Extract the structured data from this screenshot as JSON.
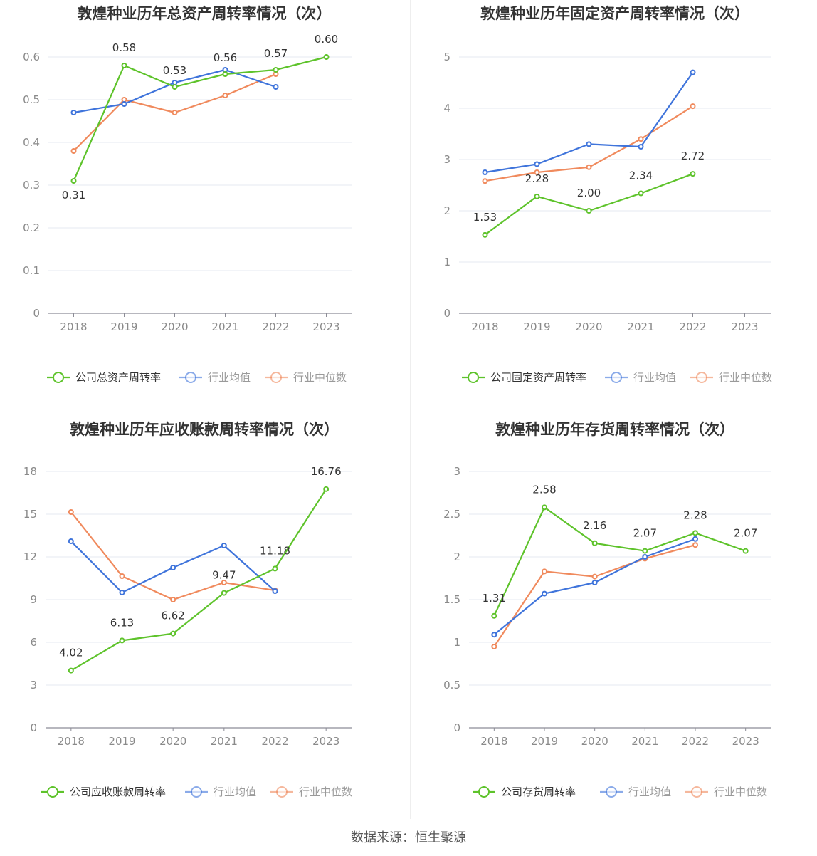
{
  "source": "数据来源：恒生聚源",
  "colors": {
    "company": "#5ec32b",
    "avg": "#3f74db",
    "median": "#f08a5d"
  },
  "chart_data": [
    {
      "type": "line",
      "title": "敦煌种业历年总资产周转率情况（次）",
      "categories": [
        "2018",
        "2019",
        "2020",
        "2021",
        "2022",
        "2023"
      ],
      "yticks": [
        "0",
        "0.1",
        "0.2",
        "0.3",
        "0.4",
        "0.5",
        "0.6"
      ],
      "ylim": [
        0,
        0.6
      ],
      "series": [
        {
          "name": "公司总资产周转率",
          "key": "company",
          "values": [
            0.31,
            0.58,
            0.53,
            0.56,
            0.57,
            0.6
          ],
          "labels": [
            "0.31",
            "0.58",
            "0.53",
            "0.56",
            "0.57",
            "0.60"
          ]
        },
        {
          "name": "行业均值",
          "key": "avg",
          "values": [
            0.47,
            0.49,
            0.54,
            0.57,
            0.53,
            null
          ]
        },
        {
          "name": "行业中位数",
          "key": "median",
          "values": [
            0.38,
            0.5,
            0.47,
            0.51,
            0.56,
            null
          ]
        }
      ]
    },
    {
      "type": "line",
      "title": "敦煌种业历年固定资产周转率情况（次）",
      "categories": [
        "2018",
        "2019",
        "2020",
        "2021",
        "2022",
        "2023"
      ],
      "yticks": [
        "0",
        "1",
        "2",
        "3",
        "4",
        "5"
      ],
      "ylim": [
        0,
        5
      ],
      "series": [
        {
          "name": "公司固定资产周转率",
          "key": "company",
          "values": [
            1.53,
            2.28,
            2.0,
            2.34,
            2.72,
            null
          ],
          "labels": [
            "1.53",
            "2.28",
            "2.00",
            "2.34",
            "2.72",
            ""
          ]
        },
        {
          "name": "行业均值",
          "key": "avg",
          "values": [
            2.75,
            2.91,
            3.3,
            3.25,
            4.7,
            null
          ]
        },
        {
          "name": "行业中位数",
          "key": "median",
          "values": [
            2.58,
            2.75,
            2.85,
            3.4,
            4.04,
            null
          ]
        }
      ]
    },
    {
      "type": "line",
      "title": "敦煌种业历年应收账款周转率情况（次）",
      "categories": [
        "2018",
        "2019",
        "2020",
        "2021",
        "2022",
        "2023"
      ],
      "yticks": [
        "0",
        "3",
        "6",
        "9",
        "12",
        "15",
        "18"
      ],
      "ylim": [
        0,
        18
      ],
      "series": [
        {
          "name": "公司应收账款周转率",
          "key": "company",
          "values": [
            4.02,
            6.13,
            6.62,
            9.47,
            11.18,
            16.76
          ],
          "labels": [
            "4.02",
            "6.13",
            "6.62",
            "9.47",
            "11.18",
            "16.76"
          ]
        },
        {
          "name": "行业均值",
          "key": "avg",
          "values": [
            13.1,
            9.5,
            11.25,
            12.8,
            9.6,
            null
          ]
        },
        {
          "name": "行业中位数",
          "key": "median",
          "values": [
            15.15,
            10.65,
            9.0,
            10.2,
            9.65,
            null
          ]
        }
      ]
    },
    {
      "type": "line",
      "title": "敦煌种业历年存货周转率情况（次）",
      "categories": [
        "2018",
        "2019",
        "2020",
        "2021",
        "2022",
        "2023"
      ],
      "yticks": [
        "0",
        "0.5",
        "1",
        "1.5",
        "2",
        "2.5",
        "3"
      ],
      "ylim": [
        0,
        3
      ],
      "series": [
        {
          "name": "公司存货周转率",
          "key": "company",
          "values": [
            1.31,
            2.58,
            2.16,
            2.07,
            2.28,
            2.07
          ],
          "labels": [
            "1.31",
            "2.58",
            "2.16",
            "2.07",
            "2.28",
            "2.07"
          ]
        },
        {
          "name": "行业均值",
          "key": "avg",
          "values": [
            1.09,
            1.57,
            1.7,
            2.0,
            2.21,
            null
          ]
        },
        {
          "name": "行业中位数",
          "key": "median",
          "values": [
            0.95,
            1.83,
            1.77,
            1.98,
            2.14,
            null
          ]
        }
      ]
    }
  ]
}
